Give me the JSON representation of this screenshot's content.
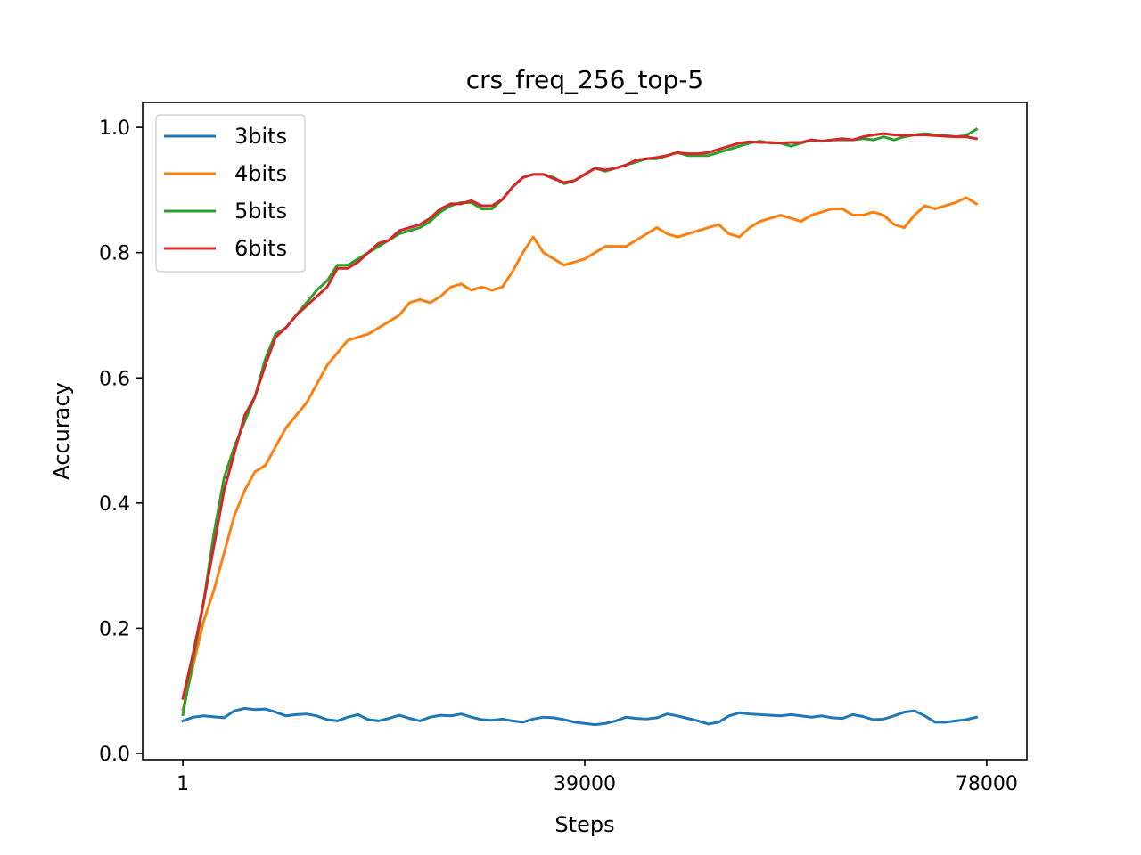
{
  "chart_data": {
    "type": "line",
    "title": "crs_freq_256_top-5",
    "xlabel": "Steps",
    "ylabel": "Accuracy",
    "xlim": [
      -3900,
      81900
    ],
    "ylim": [
      -0.01,
      1.04
    ],
    "x_ticks": [
      1,
      39000,
      78000
    ],
    "x_tick_labels": [
      "1",
      "39000",
      "78000"
    ],
    "y_ticks": [
      0.0,
      0.2,
      0.4,
      0.6,
      0.8,
      1.0
    ],
    "y_tick_labels": [
      "0.0",
      "0.2",
      "0.4",
      "0.6",
      "0.8",
      "1.0"
    ],
    "grid": false,
    "legend_position": "top-left",
    "series": [
      {
        "name": "3bits",
        "color": "#1f77b4",
        "x": [
          1,
          1000,
          2000,
          4000,
          5000,
          6000,
          7000,
          8000,
          9000,
          10000,
          11000,
          12000,
          13000,
          14000,
          15000,
          16000,
          17000,
          18000,
          19000,
          20000,
          21000,
          22000,
          23000,
          24000,
          25000,
          26000,
          27000,
          28000,
          29000,
          30000,
          31000,
          32000,
          33000,
          34000,
          35000,
          36000,
          37000,
          38000,
          39000,
          40000,
          41000,
          42000,
          43000,
          44000,
          45000,
          46000,
          47000,
          48000,
          49000,
          50000,
          51000,
          52000,
          53000,
          54000,
          55000,
          56000,
          57000,
          58000,
          59000,
          60000,
          61000,
          62000,
          63000,
          64000,
          65000,
          66000,
          67000,
          68000,
          69000,
          70000,
          71000,
          72000,
          73000,
          74000,
          75000,
          76000,
          77000
        ],
        "y": [
          0.052,
          0.058,
          0.06,
          0.057,
          0.068,
          0.072,
          0.07,
          0.071,
          0.066,
          0.06,
          0.062,
          0.063,
          0.06,
          0.054,
          0.052,
          0.058,
          0.062,
          0.054,
          0.052,
          0.056,
          0.061,
          0.056,
          0.052,
          0.058,
          0.061,
          0.06,
          0.063,
          0.058,
          0.054,
          0.053,
          0.055,
          0.052,
          0.05,
          0.055,
          0.058,
          0.057,
          0.054,
          0.05,
          0.048,
          0.046,
          0.048,
          0.052,
          0.058,
          0.056,
          0.055,
          0.057,
          0.063,
          0.06,
          0.056,
          0.052,
          0.047,
          0.05,
          0.06,
          0.065,
          0.063,
          0.062,
          0.061,
          0.06,
          0.062,
          0.06,
          0.058,
          0.06,
          0.057,
          0.056,
          0.062,
          0.059,
          0.054,
          0.055,
          0.06,
          0.066,
          0.068,
          0.06,
          0.05,
          0.05,
          0.052,
          0.054,
          0.058
        ]
      },
      {
        "name": "4bits",
        "color": "#ff7f0e",
        "x": [
          1,
          1000,
          2000,
          3000,
          4000,
          5000,
          6000,
          7000,
          8000,
          9000,
          10000,
          11000,
          12000,
          13000,
          14000,
          15000,
          16000,
          17000,
          18000,
          19000,
          20000,
          21000,
          22000,
          23000,
          24000,
          25000,
          26000,
          27000,
          28000,
          29000,
          30000,
          31000,
          32000,
          33000,
          34000,
          35000,
          36000,
          37000,
          38000,
          39000,
          40000,
          41000,
          42000,
          43000,
          44000,
          45000,
          46000,
          47000,
          48000,
          49000,
          50000,
          51000,
          52000,
          53000,
          54000,
          55000,
          56000,
          57000,
          58000,
          59000,
          60000,
          61000,
          62000,
          63000,
          64000,
          65000,
          66000,
          67000,
          68000,
          69000,
          70000,
          71000,
          72000,
          73000,
          74000,
          75000,
          76000,
          77000
        ],
        "y": [
          0.07,
          0.14,
          0.21,
          0.26,
          0.32,
          0.38,
          0.42,
          0.45,
          0.46,
          0.49,
          0.52,
          0.54,
          0.56,
          0.59,
          0.62,
          0.64,
          0.66,
          0.665,
          0.67,
          0.68,
          0.69,
          0.7,
          0.72,
          0.725,
          0.72,
          0.73,
          0.745,
          0.75,
          0.74,
          0.745,
          0.74,
          0.745,
          0.77,
          0.8,
          0.825,
          0.8,
          0.79,
          0.78,
          0.785,
          0.79,
          0.8,
          0.81,
          0.81,
          0.81,
          0.82,
          0.83,
          0.84,
          0.83,
          0.825,
          0.83,
          0.835,
          0.84,
          0.845,
          0.83,
          0.825,
          0.84,
          0.85,
          0.855,
          0.86,
          0.855,
          0.85,
          0.86,
          0.865,
          0.87,
          0.87,
          0.86,
          0.86,
          0.865,
          0.86,
          0.845,
          0.84,
          0.86,
          0.875,
          0.87,
          0.875,
          0.88,
          0.888,
          0.878
        ]
      },
      {
        "name": "5bits",
        "color": "#2ca02c",
        "x": [
          1,
          1000,
          2000,
          3000,
          4000,
          5000,
          6000,
          7000,
          8000,
          9000,
          10000,
          11000,
          12000,
          13000,
          14000,
          15000,
          16000,
          17000,
          18000,
          19000,
          20000,
          21000,
          22000,
          23000,
          24000,
          25000,
          26000,
          27000,
          28000,
          29000,
          30000,
          31000,
          32000,
          33000,
          34000,
          35000,
          36000,
          37000,
          38000,
          39000,
          40000,
          41000,
          42000,
          43000,
          44000,
          45000,
          46000,
          47000,
          48000,
          49000,
          50000,
          51000,
          52000,
          53000,
          54000,
          55000,
          56000,
          57000,
          58000,
          59000,
          60000,
          61000,
          62000,
          63000,
          64000,
          65000,
          66000,
          67000,
          68000,
          69000,
          70000,
          71000,
          72000,
          73000,
          74000,
          75000,
          76000,
          77000
        ],
        "y": [
          0.062,
          0.15,
          0.24,
          0.35,
          0.44,
          0.49,
          0.53,
          0.57,
          0.63,
          0.67,
          0.68,
          0.7,
          0.72,
          0.74,
          0.755,
          0.78,
          0.78,
          0.79,
          0.8,
          0.81,
          0.82,
          0.83,
          0.835,
          0.84,
          0.85,
          0.865,
          0.875,
          0.88,
          0.88,
          0.87,
          0.87,
          0.885,
          0.905,
          0.92,
          0.925,
          0.925,
          0.92,
          0.91,
          0.915,
          0.925,
          0.935,
          0.93,
          0.935,
          0.94,
          0.945,
          0.95,
          0.95,
          0.955,
          0.96,
          0.955,
          0.955,
          0.955,
          0.96,
          0.965,
          0.97,
          0.975,
          0.978,
          0.975,
          0.975,
          0.97,
          0.975,
          0.98,
          0.978,
          0.98,
          0.98,
          0.98,
          0.982,
          0.98,
          0.985,
          0.98,
          0.985,
          0.988,
          0.99,
          0.988,
          0.987,
          0.985,
          0.987,
          0.997
        ]
      },
      {
        "name": "6bits",
        "color": "#d62728",
        "x": [
          1,
          1000,
          2000,
          3000,
          4000,
          5000,
          6000,
          7000,
          8000,
          9000,
          10000,
          11000,
          12000,
          13000,
          14000,
          15000,
          16000,
          17000,
          18000,
          19000,
          20000,
          21000,
          22000,
          23000,
          24000,
          25000,
          26000,
          27000,
          28000,
          29000,
          30000,
          31000,
          32000,
          33000,
          34000,
          35000,
          36000,
          37000,
          38000,
          39000,
          40000,
          41000,
          42000,
          43000,
          44000,
          45000,
          46000,
          47000,
          48000,
          49000,
          50000,
          51000,
          52000,
          53000,
          54000,
          55000,
          56000,
          57000,
          58000,
          59000,
          60000,
          61000,
          62000,
          63000,
          64000,
          65000,
          66000,
          67000,
          68000,
          69000,
          70000,
          71000,
          72000,
          73000,
          74000,
          75000,
          76000,
          77000
        ],
        "y": [
          0.088,
          0.16,
          0.24,
          0.33,
          0.42,
          0.48,
          0.54,
          0.57,
          0.62,
          0.665,
          0.68,
          0.7,
          0.715,
          0.73,
          0.745,
          0.775,
          0.775,
          0.785,
          0.8,
          0.815,
          0.82,
          0.835,
          0.84,
          0.845,
          0.855,
          0.87,
          0.878,
          0.878,
          0.883,
          0.875,
          0.875,
          0.885,
          0.905,
          0.92,
          0.925,
          0.925,
          0.918,
          0.912,
          0.915,
          0.925,
          0.935,
          0.932,
          0.935,
          0.94,
          0.948,
          0.95,
          0.952,
          0.955,
          0.96,
          0.958,
          0.958,
          0.96,
          0.965,
          0.97,
          0.975,
          0.977,
          0.976,
          0.976,
          0.975,
          0.976,
          0.976,
          0.98,
          0.978,
          0.98,
          0.982,
          0.98,
          0.985,
          0.988,
          0.99,
          0.988,
          0.987,
          0.988,
          0.988,
          0.987,
          0.986,
          0.985,
          0.985,
          0.982
        ]
      }
    ]
  }
}
